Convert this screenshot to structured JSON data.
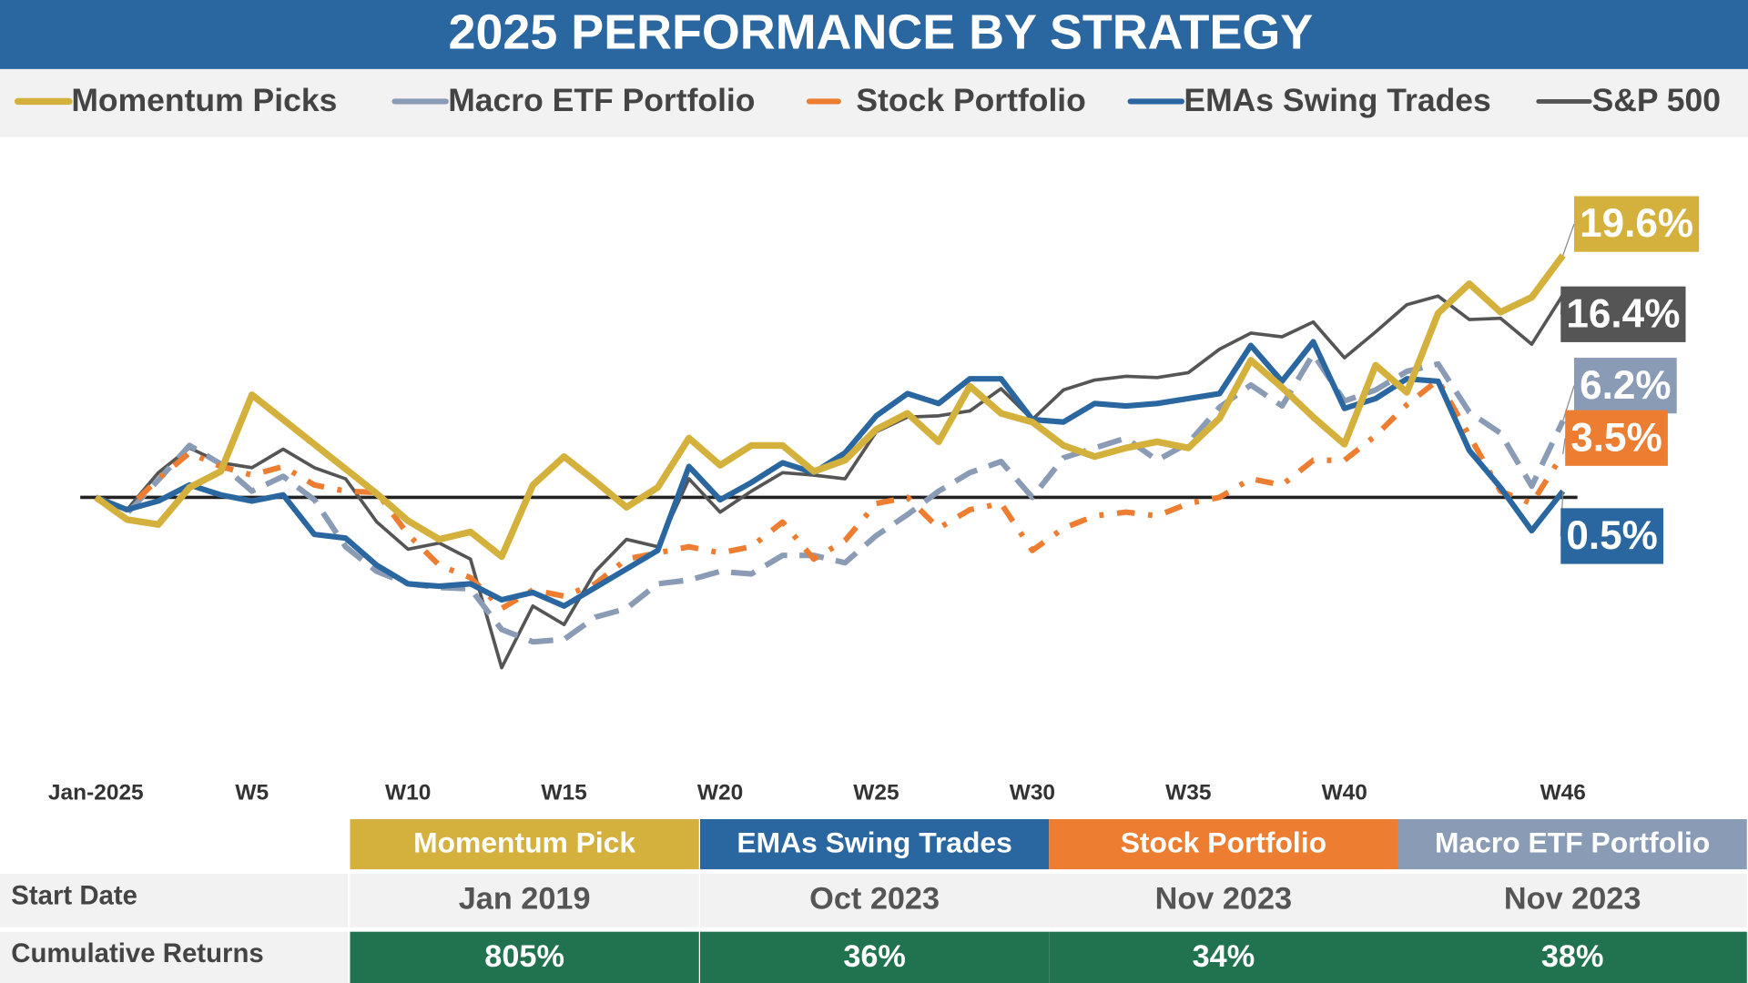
{
  "chart_data": {
    "type": "line",
    "title": "2025 PERFORMANCE BY STRATEGY",
    "categories": [
      "Jan-2025",
      null,
      null,
      null,
      null,
      "W5",
      null,
      null,
      null,
      null,
      "W10",
      null,
      null,
      null,
      null,
      "W15",
      null,
      null,
      null,
      null,
      "W20",
      null,
      null,
      null,
      null,
      "W25",
      null,
      null,
      null,
      null,
      "W30",
      null,
      null,
      null,
      null,
      "W35",
      null,
      null,
      null,
      null,
      "W40",
      null,
      null,
      null,
      null,
      null,
      null,
      "W46"
    ],
    "ylim": [
      -22,
      28
    ],
    "series": [
      {
        "name": "Momentum Picks",
        "color": "#d4b13c",
        "line_style": "solid",
        "linewidth": 6,
        "values": [
          0,
          -1.8,
          -2.2,
          0.8,
          2.1,
          8.3,
          6.3,
          4.3,
          2.3,
          0.3,
          -1.9,
          -3.4,
          -2.8,
          -4.8,
          1.0,
          3.3,
          1.3,
          -0.8,
          0.8,
          4.8,
          2.6,
          4.2,
          4.2,
          2.1,
          3.0,
          5.5,
          6.8,
          4.5,
          9.0,
          6.8,
          6.1,
          4.2,
          3.3,
          4.0,
          4.5,
          4.0,
          6.4,
          11.1,
          8.9,
          6.5,
          4.3,
          10.7,
          8.5,
          14.9,
          17.3,
          15.0,
          16.2,
          19.6
        ],
        "value_labels": [
          null,
          null,
          null,
          null,
          null,
          null,
          null,
          null,
          null,
          null,
          null,
          null,
          null,
          null,
          null,
          null,
          null,
          null,
          null,
          null,
          null,
          null,
          null,
          null,
          null,
          null,
          null,
          null,
          null,
          null,
          null,
          null,
          null,
          null,
          null,
          null,
          null,
          null,
          null,
          null,
          null,
          null,
          null,
          null,
          null,
          null,
          null,
          "19.6%"
        ]
      },
      {
        "name": "Macro ETF Portfolio",
        "color": "#8a9bb5",
        "line_style": "dashed",
        "linewidth": 5,
        "values": [
          0,
          -1.3,
          1.4,
          4.2,
          2.7,
          0.5,
          1.7,
          -0.2,
          -4.0,
          -6.0,
          -7.0,
          -7.3,
          -7.4,
          -10.7,
          -11.7,
          -11.5,
          -9.7,
          -9.0,
          -7.0,
          -6.7,
          -6.0,
          -6.2,
          -4.7,
          -4.7,
          -5.3,
          -3.1,
          -1.4,
          0.5,
          2.0,
          2.9,
          0,
          3.2,
          4.0,
          4.8,
          3.0,
          4.4,
          7.3,
          9.1,
          7.4,
          11.6,
          7.8,
          8.7,
          10.2,
          10.8,
          6.9,
          5.2,
          0.9,
          6.2
        ],
        "value_labels": [
          null,
          null,
          null,
          null,
          null,
          null,
          null,
          null,
          null,
          null,
          null,
          null,
          null,
          null,
          null,
          null,
          null,
          null,
          null,
          null,
          null,
          null,
          null,
          null,
          null,
          null,
          null,
          null,
          null,
          null,
          null,
          null,
          null,
          null,
          null,
          null,
          null,
          null,
          null,
          null,
          null,
          null,
          null,
          null,
          null,
          null,
          null,
          "6.2%"
        ]
      },
      {
        "name": "Stock Portfolio",
        "color": "#ed7d31",
        "line_style": "dashdot",
        "linewidth": 5,
        "values": [
          0,
          -1.0,
          1.5,
          3.6,
          2.5,
          1.8,
          2.5,
          1.0,
          0.5,
          0.4,
          -3.0,
          -5.5,
          -6.5,
          -9.0,
          -7.5,
          -8.0,
          -7.0,
          -5.0,
          -4.5,
          -4.0,
          -4.5,
          -4.0,
          -2.0,
          -5.0,
          -3.5,
          -0.5,
          0,
          -2.5,
          -1.0,
          -0.5,
          -4.3,
          -2.5,
          -1.5,
          -1.2,
          -1.5,
          -0.5,
          0,
          1.5,
          1.0,
          3.0,
          3.0,
          5.0,
          7.5,
          9.5,
          5.0,
          0.5,
          -0.5,
          3.5
        ],
        "value_labels": [
          null,
          null,
          null,
          null,
          null,
          null,
          null,
          null,
          null,
          null,
          null,
          null,
          null,
          null,
          null,
          null,
          null,
          null,
          null,
          null,
          null,
          null,
          null,
          null,
          null,
          null,
          null,
          null,
          null,
          null,
          null,
          null,
          null,
          null,
          null,
          null,
          null,
          null,
          null,
          null,
          null,
          null,
          null,
          null,
          null,
          null,
          null,
          "3.5%"
        ]
      },
      {
        "name": "EMAs Swing Trades",
        "color": "#2a66a0",
        "line_style": "solid",
        "linewidth": 5,
        "values": [
          0,
          -1.0,
          -0.3,
          1.0,
          0.2,
          -0.3,
          0.2,
          -3.0,
          -3.3,
          -5.5,
          -7.0,
          -7.2,
          -7.0,
          -8.3,
          -7.7,
          -8.8,
          -7.3,
          -5.8,
          -4.3,
          2.5,
          -0.2,
          1.2,
          2.8,
          2.0,
          3.6,
          6.6,
          8.4,
          7.6,
          9.6,
          9.6,
          6.3,
          6.1,
          7.6,
          7.4,
          7.6,
          8.0,
          8.4,
          12.3,
          9.4,
          12.6,
          7.2,
          8.0,
          9.6,
          9.4,
          3.8,
          0.8,
          -2.7,
          0.5
        ],
        "value_labels": [
          null,
          null,
          null,
          null,
          null,
          null,
          null,
          null,
          null,
          null,
          null,
          null,
          null,
          null,
          null,
          null,
          null,
          null,
          null,
          null,
          null,
          null,
          null,
          null,
          null,
          null,
          null,
          null,
          null,
          null,
          null,
          null,
          null,
          null,
          null,
          null,
          null,
          null,
          null,
          null,
          null,
          null,
          null,
          null,
          null,
          null,
          null,
          "0.5%"
        ]
      },
      {
        "name": "S&P 500",
        "color": "#555555",
        "line_style": "solid",
        "linewidth": 3,
        "values": [
          0,
          -1.0,
          2.0,
          4.0,
          2.8,
          2.4,
          3.9,
          2.4,
          1.5,
          -2.0,
          -4.2,
          -3.7,
          -5.0,
          -13.8,
          -8.8,
          -10.3,
          -6.0,
          -3.4,
          -4.0,
          1.5,
          -1.2,
          0.5,
          2.0,
          1.8,
          1.5,
          5.3,
          6.5,
          6.6,
          7.0,
          8.8,
          6.3,
          8.7,
          9.5,
          9.8,
          9.7,
          10.1,
          12.0,
          13.3,
          13.0,
          14.2,
          11.3,
          13.4,
          15.6,
          16.3,
          14.4,
          14.5,
          12.4,
          16.4
        ],
        "value_labels": [
          null,
          null,
          null,
          null,
          null,
          null,
          null,
          null,
          null,
          null,
          null,
          null,
          null,
          null,
          null,
          null,
          null,
          null,
          null,
          null,
          null,
          null,
          null,
          null,
          null,
          null,
          null,
          null,
          null,
          null,
          null,
          null,
          null,
          null,
          null,
          null,
          null,
          null,
          null,
          null,
          null,
          null,
          null,
          null,
          null,
          null,
          null,
          "16.4%"
        ]
      }
    ]
  },
  "table": {
    "columns": [
      {
        "name": "Momentum Pick",
        "color": "#d4b13c"
      },
      {
        "name": "EMAs Swing Trades",
        "color": "#2a66a0"
      },
      {
        "name": "Stock Portfolio",
        "color": "#ed7d31"
      },
      {
        "name": "Macro ETF Portfolio",
        "color": "#8a9bb5"
      }
    ],
    "rows": [
      {
        "label": "Start Date",
        "cells": [
          "Jan 2019",
          "Oct 2023",
          "Nov 2023",
          "Nov 2023"
        ]
      },
      {
        "label": "Cumulative Returns",
        "cells": [
          "805%",
          "36%",
          "34%",
          "38%"
        ],
        "color": "#217350"
      }
    ]
  }
}
